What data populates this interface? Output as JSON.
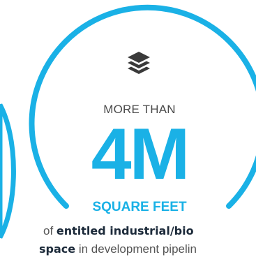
{
  "colors": {
    "accent": "#1ab1e6",
    "dark_text": "#1c2a3a",
    "body_text": "#555555",
    "icon": "#3a3a3a"
  },
  "stat": {
    "icon": "layers-icon",
    "prefix": "MORE THAN",
    "value": "4M",
    "unit": "SQUARE FEET",
    "description_line1": {
      "plain_before": "of ",
      "bold": "entitled industrial/bio"
    },
    "description_line2": {
      "bold": "space",
      "plain_after": " in development pipelin"
    }
  }
}
